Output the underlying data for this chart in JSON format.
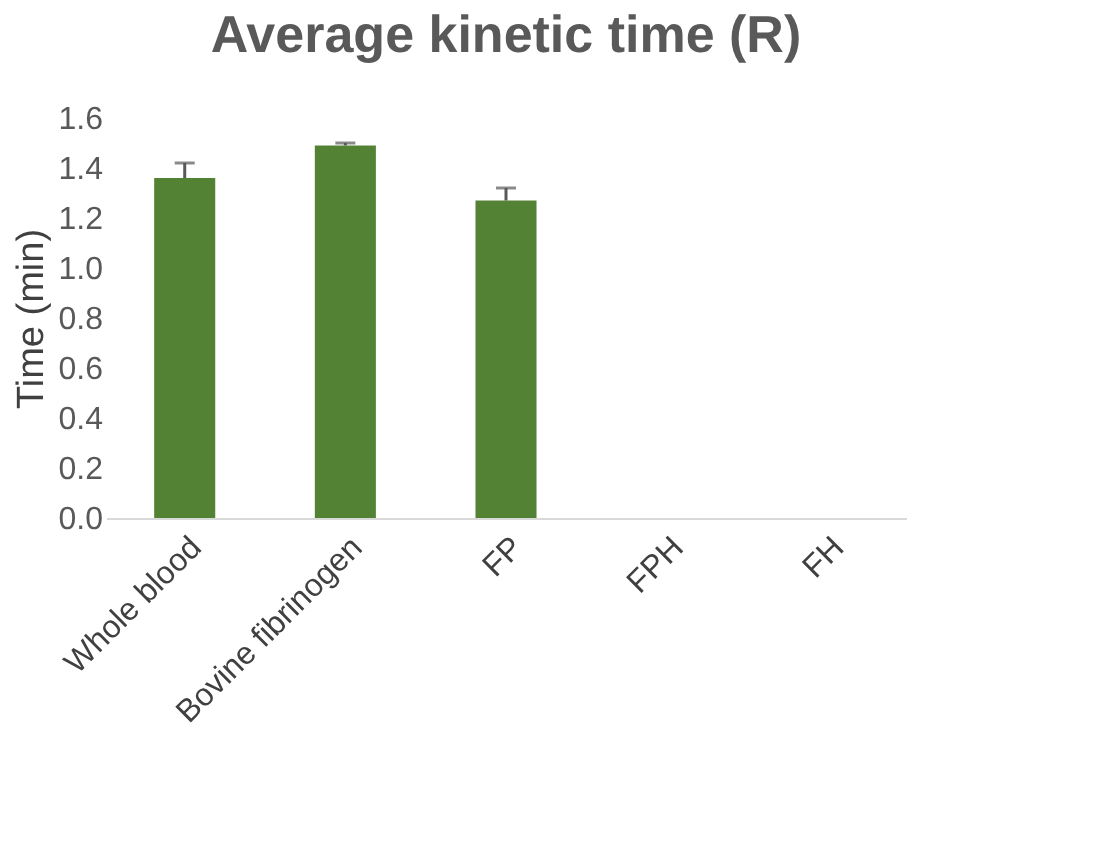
{
  "chart_data": {
    "type": "bar",
    "title": "Average kinetic time (R)",
    "ylabel": "Time (min)",
    "categories": [
      "Whole blood",
      "Bovine fibrinogen",
      "FP",
      "FPH",
      "FH"
    ],
    "values": [
      1.36,
      1.49,
      1.27,
      0,
      0
    ],
    "color": "#548235",
    "errors": [
      [
        1.36,
        1.42
      ],
      [
        1.49,
        1.5
      ],
      [
        1.27,
        1.32
      ],
      null,
      null
    ],
    "ylim": [
      0,
      1.6
    ],
    "yticks": [
      {
        "value": 0,
        "label": "0.0"
      },
      0.2,
      0.4,
      0.6,
      0.8,
      {
        "value": 1,
        "label": "1.0"
      },
      1.2,
      1.4,
      1.6
    ],
    "grid": false
  }
}
